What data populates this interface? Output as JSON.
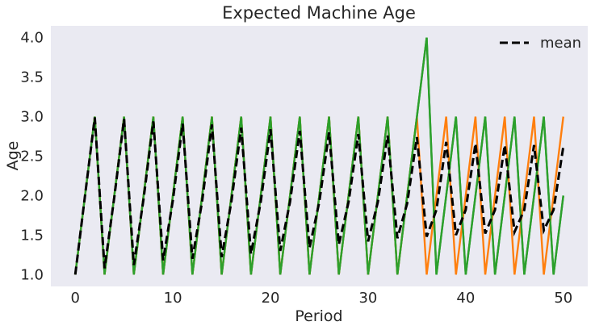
{
  "chart_data": {
    "type": "line",
    "title": "Expected Machine Age",
    "xlabel": "Period",
    "ylabel": "Age",
    "xlim": [
      -2.5,
      52.5
    ],
    "ylim": [
      0.85,
      4.15
    ],
    "xticks": [
      0,
      10,
      20,
      30,
      40,
      50
    ],
    "yticks": [
      1.0,
      1.5,
      2.0,
      2.5,
      3.0,
      3.5,
      4.0
    ],
    "ytick_labels": [
      "1.0",
      "1.5",
      "2.0",
      "2.5",
      "3.0",
      "3.5",
      "4.0"
    ],
    "grid": false,
    "legend_position": "top-right",
    "background_color": "#eaeaf2",
    "colors": {
      "green": "#2ca02c",
      "orange": "#ff7f0e",
      "mean": "#000000"
    },
    "x": [
      0,
      1,
      2,
      3,
      4,
      5,
      6,
      7,
      8,
      9,
      10,
      11,
      12,
      13,
      14,
      15,
      16,
      17,
      18,
      19,
      20,
      21,
      22,
      23,
      24,
      25,
      26,
      27,
      28,
      29,
      30,
      31,
      32,
      33,
      34,
      35,
      36,
      37,
      38,
      39,
      40,
      41,
      42,
      43,
      44,
      45,
      46,
      47,
      48,
      49,
      50
    ],
    "series": [
      {
        "color": "#2ca02c",
        "dashed": false,
        "values": [
          1,
          2,
          3,
          1,
          2,
          3,
          1,
          2,
          3,
          1,
          2,
          3,
          1,
          2,
          3,
          1,
          2,
          3,
          1,
          2,
          3,
          1,
          2,
          3,
          1,
          2,
          3,
          1,
          2,
          3,
          1,
          2,
          3,
          1,
          2,
          3,
          4,
          1,
          2,
          3,
          1,
          2,
          3,
          1,
          2,
          3,
          1,
          2,
          3,
          1,
          2
        ]
      },
      {
        "color": "#ff7f0e",
        "dashed": false,
        "values": [
          1,
          2,
          3,
          1,
          2,
          3,
          1,
          2,
          3,
          1,
          2,
          3,
          1,
          2,
          3,
          1,
          2,
          3,
          1,
          2,
          3,
          1,
          2,
          3,
          1,
          2,
          3,
          1,
          2,
          3,
          1,
          2,
          3,
          1,
          2,
          3,
          1,
          2,
          3,
          1,
          2,
          3,
          1,
          2,
          3,
          1,
          2,
          3,
          1,
          2,
          3
        ]
      },
      {
        "color": "#2ca02c",
        "dashed": false,
        "values": [
          1,
          2,
          3,
          1,
          2,
          3,
          1,
          2,
          3,
          1,
          2,
          3,
          1,
          2,
          3,
          1,
          2,
          3,
          1,
          2,
          3,
          1,
          2,
          3,
          1,
          2,
          3,
          1,
          2,
          3,
          1,
          2,
          3,
          1,
          2,
          3,
          4,
          1,
          2,
          3,
          1,
          2,
          3,
          1,
          2,
          3,
          1,
          2,
          3,
          1,
          2
        ]
      },
      {
        "name": "mean",
        "color": "#000000",
        "dashed": true,
        "values": [
          1,
          2,
          2.99,
          1.08,
          1.98,
          2.97,
          1.12,
          1.96,
          2.94,
          1.18,
          1.94,
          2.91,
          1.2,
          1.93,
          2.9,
          1.22,
          1.93,
          2.86,
          1.26,
          1.92,
          2.84,
          1.3,
          1.92,
          2.82,
          1.34,
          1.92,
          2.8,
          1.38,
          1.92,
          2.78,
          1.42,
          1.92,
          2.76,
          1.46,
          1.9,
          2.74,
          1.48,
          1.82,
          2.68,
          1.5,
          1.82,
          2.66,
          1.52,
          1.82,
          2.64,
          1.54,
          1.82,
          2.64,
          1.56,
          1.82,
          2.62
        ]
      }
    ],
    "legend": [
      {
        "label": "mean",
        "color": "#000000",
        "dashed": true
      }
    ]
  }
}
